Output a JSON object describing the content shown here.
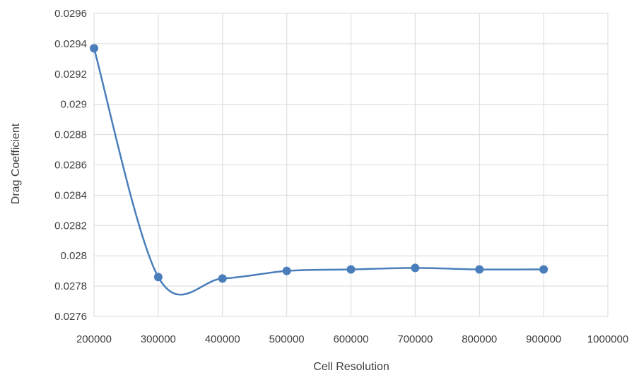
{
  "chart_data": {
    "type": "line",
    "title": "",
    "xlabel": "Cell Resolution",
    "ylabel": "Drag Coefficient",
    "xlim": [
      200000,
      1000000
    ],
    "ylim": [
      0.0276,
      0.0296
    ],
    "x_ticks": [
      200000,
      300000,
      400000,
      500000,
      600000,
      700000,
      800000,
      900000,
      1000000
    ],
    "x_tick_labels": [
      "200000",
      "300000",
      "400000",
      "500000",
      "600000",
      "700000",
      "800000",
      "900000",
      "1000000"
    ],
    "y_ticks": [
      0.0276,
      0.0278,
      0.028,
      0.0282,
      0.0284,
      0.0286,
      0.0288,
      0.029,
      0.0292,
      0.0294,
      0.0296
    ],
    "y_tick_labels": [
      "0.0276",
      "0.0278",
      "0.028",
      "0.0282",
      "0.0284",
      "0.0286",
      "0.0288",
      "0.029",
      "0.0292",
      "0.0294",
      "0.0296"
    ],
    "grid": true,
    "smooth": true,
    "series": [
      {
        "color": "#4a7ebb",
        "x": [
          200000,
          300000,
          400000,
          500000,
          600000,
          700000,
          800000,
          900000
        ],
        "y": [
          0.02937,
          0.02786,
          0.02785,
          0.0279,
          0.02791,
          0.02792,
          0.02791,
          0.02791
        ]
      }
    ]
  },
  "colors": {
    "gridline": "#d9d9d9",
    "axis_text": "#404040",
    "series": "#4a7ebb"
  }
}
